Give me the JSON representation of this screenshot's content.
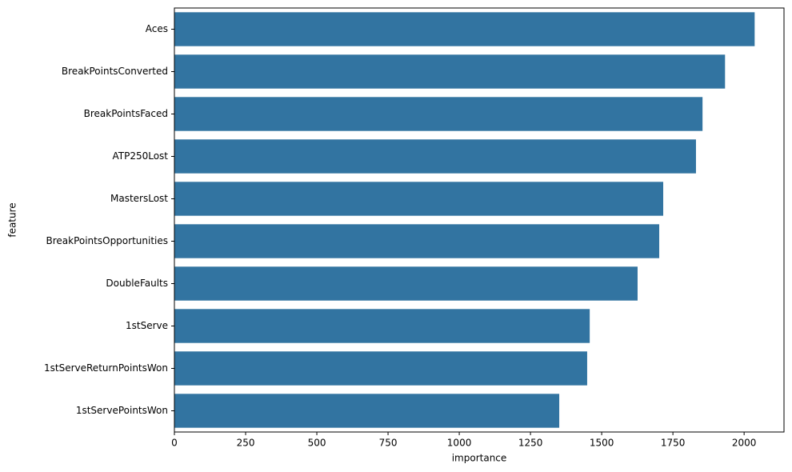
{
  "chart_data": {
    "type": "barh",
    "x_label": "importance",
    "y_label": "feature",
    "categories": [
      "Aces",
      "BreakPointsConverted",
      "BreakPointsFaced",
      "ATP250Lost",
      "MastersLost",
      "BreakPointsOpportunities",
      "DoubleFaults",
      "1stServe",
      "1stServeReturnPointsWon",
      "1stServePointsWon"
    ],
    "values": [
      2037,
      1933,
      1854,
      1831,
      1716,
      1702,
      1626,
      1458,
      1449,
      1351
    ],
    "color": "#3274a1",
    "xlim": [
      0,
      2140
    ],
    "xticks": [
      0,
      250,
      500,
      750,
      1000,
      1250,
      1500,
      1750,
      2000
    ]
  }
}
